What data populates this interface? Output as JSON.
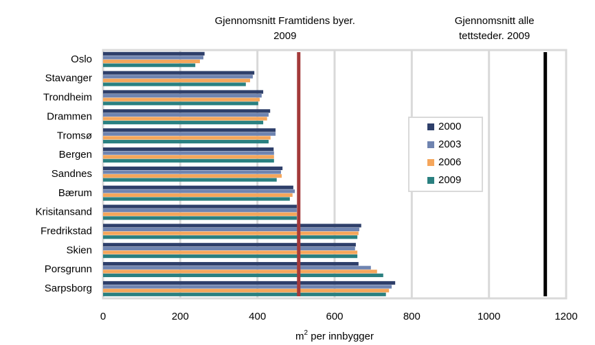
{
  "chart_data": {
    "type": "hbar",
    "categories": [
      "Oslo",
      "Stavanger",
      "Trondheim",
      "Drammen",
      "Tromsø",
      "Bergen",
      "Sandnes",
      "Bærum",
      "Krisitansand",
      "Fredrikstad",
      "Skien",
      "Porsgrunn",
      "Sarpsborg"
    ],
    "series": [
      {
        "name": "2000",
        "color": "#2e3f6a",
        "values": [
          263,
          392,
          415,
          433,
          447,
          442,
          465,
          493,
          502,
          669,
          655,
          662,
          757
        ]
      },
      {
        "name": "2003",
        "color": "#6f84b0",
        "values": [
          260,
          388,
          411,
          429,
          447,
          443,
          461,
          497,
          502,
          664,
          653,
          694,
          748
        ]
      },
      {
        "name": "2006",
        "color": "#f5a65b",
        "values": [
          251,
          381,
          406,
          425,
          434,
          443,
          463,
          491,
          502,
          662,
          659,
          710,
          741
        ]
      },
      {
        "name": "2009",
        "color": "#2a8080",
        "values": [
          239,
          370,
          402,
          415,
          429,
          443,
          450,
          484,
          502,
          659,
          659,
          726,
          733
        ]
      }
    ],
    "xlim": [
      0,
      1200
    ],
    "xticks": [
      0,
      200,
      400,
      600,
      800,
      1000,
      1200
    ],
    "grid": true,
    "x_label": [
      "m",
      "2",
      " per innbygger"
    ],
    "reference_lines": [
      {
        "label": [
          "Gjennomsnitt Framtidens byer.",
          "2009"
        ],
        "value": 507,
        "color": "#a33a3a"
      },
      {
        "label": [
          "Gjennomsnitt alle",
          "tettsteder.  2009"
        ],
        "value": 1146,
        "color": "#000000"
      }
    ]
  }
}
